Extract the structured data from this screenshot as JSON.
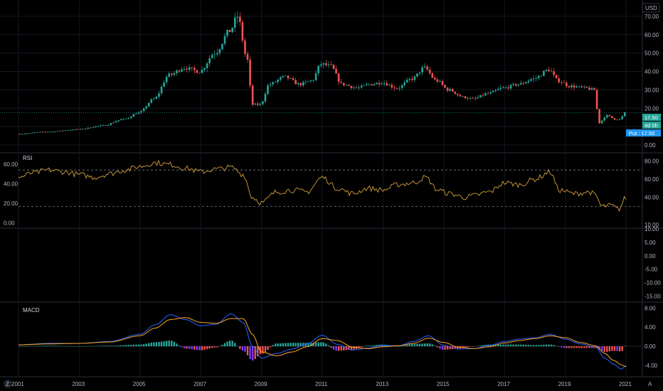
{
  "currency": "USD",
  "corner_left": "Z",
  "corner_right": "A",
  "colors": {
    "up": "#26a69a",
    "down": "#ef5350",
    "rsi_line": "#d4a03a",
    "macd_line": "#2962ff",
    "signal_line": "#ffa726",
    "hist_pos": "#26a69a",
    "hist_neg": "#ef5350",
    "hist_neg_fall": "#7b3cff",
    "badge": "#26a69a",
    "badge_alt": "#2196f3"
  },
  "price_badges": {
    "last": "17.50",
    "mid": "4d 0h",
    "put": "Put : 17.50"
  },
  "chart_data": [
    {
      "type": "candlestick",
      "pane": "price",
      "title": "",
      "x": {
        "start": 2001.0,
        "end": 2021.0,
        "tick_labels": [
          "2001",
          "2003",
          "2005",
          "2007",
          "2009",
          "2011",
          "2013",
          "2015",
          "2017",
          "2019",
          "2021"
        ]
      },
      "y": {
        "range": [
          0,
          75
        ],
        "tick_labels": [
          "0.00",
          "10.00",
          "20.00",
          "30.00",
          "40.00",
          "50.00",
          "60.00",
          "70.00"
        ]
      },
      "close_anchors": [
        [
          2001.0,
          6.0
        ],
        [
          2002.0,
          7.2
        ],
        [
          2003.0,
          8.5
        ],
        [
          2003.8,
          10.5
        ],
        [
          2004.5,
          14.0
        ],
        [
          2005.0,
          17.5
        ],
        [
          2005.5,
          25.0
        ],
        [
          2006.0,
          38.0
        ],
        [
          2006.5,
          42.0
        ],
        [
          2007.0,
          40.0
        ],
        [
          2007.5,
          50.0
        ],
        [
          2008.0,
          62.0
        ],
        [
          2008.25,
          70.0
        ],
        [
          2008.55,
          48.0
        ],
        [
          2008.75,
          22.0
        ],
        [
          2009.0,
          22.0
        ],
        [
          2009.3,
          33.0
        ],
        [
          2009.8,
          37.0
        ],
        [
          2010.3,
          33.0
        ],
        [
          2010.7,
          35.0
        ],
        [
          2011.0,
          44.0
        ],
        [
          2011.3,
          43.0
        ],
        [
          2011.7,
          33.0
        ],
        [
          2012.2,
          31.0
        ],
        [
          2012.6,
          33.0
        ],
        [
          2013.0,
          34.0
        ],
        [
          2013.5,
          31.0
        ],
        [
          2014.0,
          36.0
        ],
        [
          2014.4,
          42.0
        ],
        [
          2014.8,
          35.0
        ],
        [
          2015.2,
          30.0
        ],
        [
          2015.7,
          26.0
        ],
        [
          2016.0,
          25.0
        ],
        [
          2016.5,
          28.0
        ],
        [
          2017.0,
          31.0
        ],
        [
          2017.5,
          33.0
        ],
        [
          2018.0,
          36.0
        ],
        [
          2018.5,
          41.0
        ],
        [
          2018.8,
          35.0
        ],
        [
          2019.2,
          32.0
        ],
        [
          2019.7,
          31.0
        ],
        [
          2020.0,
          30.0
        ],
        [
          2020.15,
          12.0
        ],
        [
          2020.4,
          16.0
        ],
        [
          2020.7,
          14.0
        ],
        [
          2020.85,
          14.0
        ],
        [
          2021.0,
          17.5
        ]
      ],
      "last_price": 17.5
    },
    {
      "type": "line",
      "pane": "rsi",
      "title": "RSI",
      "y_left": {
        "range": [
          -2,
          68
        ],
        "tick_labels": [
          "0.00",
          "20.00",
          "40.00",
          "60.00"
        ]
      },
      "y_right": {
        "range": [
          10,
          85
        ],
        "tick_labels": [
          "10.00",
          "40.00",
          "60.00",
          "80.00"
        ]
      },
      "levels": [
        70,
        30
      ],
      "anchors": [
        [
          2001.0,
          62
        ],
        [
          2001.5,
          67
        ],
        [
          2002.0,
          70
        ],
        [
          2002.5,
          68
        ],
        [
          2003.0,
          65
        ],
        [
          2003.5,
          62
        ],
        [
          2004.0,
          66
        ],
        [
          2004.5,
          70
        ],
        [
          2005.0,
          74
        ],
        [
          2005.5,
          78
        ],
        [
          2006.0,
          76
        ],
        [
          2006.5,
          72
        ],
        [
          2007.0,
          68
        ],
        [
          2007.5,
          71
        ],
        [
          2008.0,
          73
        ],
        [
          2008.4,
          65
        ],
        [
          2008.7,
          40
        ],
        [
          2009.0,
          34
        ],
        [
          2009.5,
          46
        ],
        [
          2010.0,
          48
        ],
        [
          2010.5,
          46
        ],
        [
          2011.0,
          62
        ],
        [
          2011.5,
          50
        ],
        [
          2012.0,
          44
        ],
        [
          2012.5,
          50
        ],
        [
          2013.0,
          48
        ],
        [
          2013.5,
          54
        ],
        [
          2014.0,
          56
        ],
        [
          2014.4,
          62
        ],
        [
          2014.8,
          48
        ],
        [
          2015.2,
          44
        ],
        [
          2015.7,
          40
        ],
        [
          2016.0,
          42
        ],
        [
          2016.5,
          46
        ],
        [
          2017.0,
          56
        ],
        [
          2017.5,
          54
        ],
        [
          2018.0,
          60
        ],
        [
          2018.5,
          68
        ],
        [
          2018.8,
          48
        ],
        [
          2019.3,
          44
        ],
        [
          2019.8,
          46
        ],
        [
          2020.0,
          42
        ],
        [
          2020.2,
          30
        ],
        [
          2020.5,
          31
        ],
        [
          2020.75,
          27
        ],
        [
          2021.0,
          40
        ]
      ]
    },
    {
      "type": "line+histogram",
      "pane": "macd",
      "title": "MACD",
      "y": {
        "range": [
          -5.5,
          8.5
        ],
        "tick_labels": [
          "-4.00",
          "0.00",
          "4.00",
          "8.00"
        ]
      },
      "empty_pane_ticks": [
        "10.00",
        "5.00",
        "0.00",
        "-5.00",
        "-10.00",
        "-15.00"
      ],
      "macd_anchors": [
        [
          2001.0,
          0.3
        ],
        [
          2002.0,
          0.6
        ],
        [
          2003.0,
          0.6
        ],
        [
          2004.0,
          1.0
        ],
        [
          2005.0,
          2.5
        ],
        [
          2005.5,
          4.5
        ],
        [
          2006.0,
          6.6
        ],
        [
          2006.5,
          5.6
        ],
        [
          2007.0,
          4.3
        ],
        [
          2007.5,
          4.6
        ],
        [
          2008.0,
          6.8
        ],
        [
          2008.4,
          5.0
        ],
        [
          2008.7,
          0.0
        ],
        [
          2009.0,
          -2.5
        ],
        [
          2009.5,
          -1.5
        ],
        [
          2010.0,
          -0.6
        ],
        [
          2010.5,
          0.5
        ],
        [
          2011.0,
          2.3
        ],
        [
          2011.5,
          0.4
        ],
        [
          2012.0,
          -0.8
        ],
        [
          2012.5,
          -0.4
        ],
        [
          2013.0,
          0.2
        ],
        [
          2013.5,
          0.1
        ],
        [
          2014.0,
          1.0
        ],
        [
          2014.5,
          2.2
        ],
        [
          2015.0,
          0.2
        ],
        [
          2015.5,
          -0.6
        ],
        [
          2016.0,
          -0.5
        ],
        [
          2016.5,
          0.2
        ],
        [
          2017.0,
          1.0
        ],
        [
          2017.5,
          1.5
        ],
        [
          2018.0,
          1.8
        ],
        [
          2018.5,
          2.5
        ],
        [
          2019.0,
          1.5
        ],
        [
          2019.5,
          0.5
        ],
        [
          2020.0,
          -0.2
        ],
        [
          2020.3,
          -2.5
        ],
        [
          2020.6,
          -3.8
        ],
        [
          2020.85,
          -4.8
        ],
        [
          2021.0,
          -4.0
        ]
      ],
      "signal_anchors": [
        [
          2001.0,
          0.3
        ],
        [
          2002.0,
          0.5
        ],
        [
          2003.0,
          0.6
        ],
        [
          2004.0,
          0.9
        ],
        [
          2005.0,
          2.2
        ],
        [
          2005.5,
          3.8
        ],
        [
          2006.0,
          5.6
        ],
        [
          2006.5,
          6.0
        ],
        [
          2007.0,
          5.0
        ],
        [
          2007.5,
          4.8
        ],
        [
          2008.0,
          5.8
        ],
        [
          2008.4,
          5.8
        ],
        [
          2008.7,
          2.5
        ],
        [
          2009.0,
          -1.2
        ],
        [
          2009.5,
          -2.0
        ],
        [
          2010.0,
          -1.2
        ],
        [
          2010.5,
          -0.1
        ],
        [
          2011.0,
          1.6
        ],
        [
          2011.5,
          1.2
        ],
        [
          2012.0,
          -0.2
        ],
        [
          2012.5,
          -0.5
        ],
        [
          2013.0,
          -0.1
        ],
        [
          2013.5,
          0.1
        ],
        [
          2014.0,
          0.6
        ],
        [
          2014.5,
          1.7
        ],
        [
          2015.0,
          0.8
        ],
        [
          2015.5,
          -0.2
        ],
        [
          2016.0,
          -0.5
        ],
        [
          2016.5,
          -0.1
        ],
        [
          2017.0,
          0.7
        ],
        [
          2017.5,
          1.2
        ],
        [
          2018.0,
          1.6
        ],
        [
          2018.5,
          2.2
        ],
        [
          2019.0,
          1.8
        ],
        [
          2019.5,
          0.8
        ],
        [
          2020.0,
          0.1
        ],
        [
          2020.3,
          -1.5
        ],
        [
          2020.6,
          -3.0
        ],
        [
          2020.85,
          -3.9
        ],
        [
          2021.0,
          -4.3
        ]
      ]
    }
  ]
}
